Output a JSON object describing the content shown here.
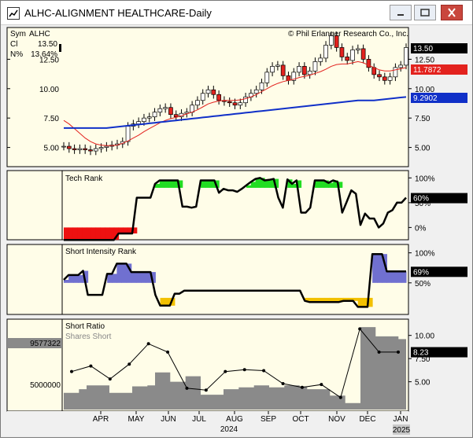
{
  "window": {
    "title": "ALHC-ALIGNMENT HEALTHCARE-Daily"
  },
  "price_info": {
    "sym_label": "Sym",
    "sym_value": "ALHC",
    "cl_label": "Cl",
    "cl_value": "13.50",
    "npct_label": "N%",
    "npct_value": "13.64%"
  },
  "copyright": "© Phil Erlanger Research Co., Inc.",
  "colors": {
    "panel_bg": "#fffde8",
    "ma_short": "#e3221e",
    "ma_long": "#1030c8",
    "tech_rank_fill_high": "#22dd22",
    "tech_rank_fill_low": "#ee1111",
    "short_intensity_fill": "#7070d0",
    "short_intensity_fill_low": "#f2c000",
    "shares_short_fill": "#8a8a8a"
  },
  "x_axis": {
    "months": [
      "APR",
      "MAY",
      "JUN",
      "JUL",
      "AUG",
      "SEP",
      "OCT",
      "NOV",
      "DEC",
      "JAN"
    ],
    "year_labels": [
      "2024",
      "2025"
    ]
  },
  "chart_data": [
    {
      "type": "candlestick",
      "panel": "price",
      "y_ticks": [
        "5.00",
        "7.50",
        "10.00",
        "12.50"
      ],
      "ylim": [
        3.5,
        15.0
      ],
      "price_label": "13.50",
      "ma_short_label": "11.7872",
      "ma_long_label": "9.2902",
      "close": [
        5.1,
        4.9,
        4.8,
        4.9,
        4.8,
        4.7,
        4.9,
        5.0,
        5.1,
        5.2,
        5.3,
        5.5,
        6.8,
        7.0,
        7.2,
        7.5,
        7.6,
        8.0,
        8.3,
        8.4,
        7.8,
        7.6,
        7.9,
        8.0,
        8.6,
        9.0,
        9.6,
        9.9,
        9.5,
        9.0,
        8.9,
        8.8,
        8.6,
        8.8,
        9.3,
        9.6,
        9.9,
        10.5,
        11.4,
        11.9,
        12.0,
        11.1,
        10.7,
        11.4,
        11.9,
        11.2,
        11.5,
        12.3,
        12.6,
        13.7,
        14.5,
        13.5,
        12.7,
        12.4,
        13.3,
        13.4,
        12.5,
        11.8,
        11.2,
        11.0,
        10.7,
        11.0,
        11.8,
        12.0,
        13.5
      ],
      "ma_short": [
        7.3,
        7.0,
        6.6,
        6.2,
        5.8,
        5.5,
        5.3,
        5.2,
        5.15,
        5.15,
        5.2,
        5.35,
        5.55,
        5.8,
        6.05,
        6.35,
        6.6,
        6.85,
        7.1,
        7.3,
        7.45,
        7.55,
        7.7,
        7.85,
        8.0,
        8.2,
        8.45,
        8.7,
        8.85,
        8.95,
        9.0,
        9.0,
        9.0,
        9.05,
        9.15,
        9.3,
        9.5,
        9.75,
        10.0,
        10.25,
        10.45,
        10.6,
        10.7,
        10.8,
        10.95,
        11.05,
        11.15,
        11.3,
        11.45,
        11.65,
        11.9,
        12.05,
        12.1,
        12.1,
        12.2,
        12.3,
        12.2,
        12.0,
        11.8,
        11.6,
        11.5,
        11.5,
        11.6,
        11.7,
        11.79
      ],
      "ma_long": [
        6.65,
        6.65,
        6.65,
        6.65,
        6.65,
        6.65,
        6.65,
        6.65,
        6.65,
        6.7,
        6.75,
        6.8,
        6.85,
        6.9,
        6.95,
        7.0,
        7.05,
        7.1,
        7.15,
        7.2,
        7.25,
        7.3,
        7.35,
        7.4,
        7.45,
        7.5,
        7.55,
        7.6,
        7.65,
        7.7,
        7.75,
        7.8,
        7.85,
        7.9,
        7.95,
        8.0,
        8.05,
        8.1,
        8.15,
        8.2,
        8.25,
        8.3,
        8.35,
        8.4,
        8.45,
        8.5,
        8.55,
        8.6,
        8.65,
        8.7,
        8.75,
        8.8,
        8.85,
        8.9,
        8.95,
        9.0,
        9.0,
        9.0,
        9.0,
        9.05,
        9.1,
        9.15,
        9.2,
        9.25,
        9.29
      ]
    },
    {
      "type": "area",
      "panel": "tech_rank",
      "title": "Tech Rank",
      "y_ticks": [
        "100%",
        "50%",
        "0%"
      ],
      "ylim": [
        -20,
        110
      ],
      "current_label": "60%",
      "values": [
        -25,
        -25,
        -25,
        -25,
        -25,
        -25,
        -25,
        -25,
        -25,
        -25,
        -25,
        -25,
        -12,
        -12,
        -12,
        -12,
        60,
        60,
        60,
        60,
        88,
        95,
        95,
        95,
        95,
        95,
        42,
        42,
        40,
        42,
        95,
        95,
        95,
        95,
        70,
        78,
        75,
        75,
        72,
        78,
        85,
        92,
        98,
        100,
        95,
        96,
        98,
        60,
        40,
        97,
        88,
        95,
        30,
        30,
        40,
        95,
        95,
        95,
        90,
        95,
        92,
        30,
        52,
        75,
        68,
        5,
        28,
        18,
        18,
        0,
        8,
        30,
        35,
        50,
        50,
        60
      ]
    },
    {
      "type": "area",
      "panel": "short_intensity_rank",
      "title": "Short Intensity Rank",
      "y_ticks": [
        "100%",
        "50%"
      ],
      "ylim": [
        0,
        110
      ],
      "current_label": "69%",
      "values": [
        55,
        63,
        63,
        63,
        70,
        30,
        30,
        30,
        30,
        65,
        65,
        82,
        82,
        82,
        68,
        68,
        68,
        68,
        68,
        30,
        12,
        12,
        12,
        32,
        32,
        37,
        37,
        37,
        37,
        37,
        37,
        37,
        37,
        37,
        37,
        37,
        37,
        37,
        37,
        37,
        37,
        37,
        37,
        37,
        37,
        37,
        37,
        37,
        37,
        37,
        20,
        18,
        18,
        18,
        18,
        18,
        18,
        18,
        20,
        20,
        20,
        10,
        10,
        10,
        98,
        98,
        98,
        69,
        69,
        69,
        69,
        69
      ]
    },
    {
      "type": "bar_line",
      "panel": "short_ratio",
      "title": "Short Ratio",
      "subtitle": "Shares Short",
      "y_ticks_right": [
        "10.00",
        "7.50",
        "5.00"
      ],
      "y_ticks_left": [
        "5000000"
      ],
      "ylim": [
        2.0,
        11.5
      ],
      "left_value_label": "9577322",
      "current_label": "8.23",
      "shares_short": [
        3.8,
        3.8,
        4.2,
        4.6,
        4.6,
        4.6,
        3.8,
        3.8,
        3.8,
        4.5,
        4.5,
        4.6,
        6.0,
        6.0,
        5.0,
        5.0,
        5.6,
        5.6,
        3.6,
        3.6,
        3.6,
        4.2,
        4.2,
        4.4,
        4.4,
        4.6,
        4.6,
        4.4,
        4.4,
        4.6,
        4.6,
        4.5,
        4.2,
        4.2,
        4.2,
        3.5,
        3.5,
        2.7,
        2.7,
        10.9,
        10.9,
        9.9,
        9.9,
        9.9,
        9.6,
        9.6
      ],
      "short_ratio": [
        6.1,
        6.7,
        5.3,
        6.9,
        9.1,
        8.2,
        4.3,
        4.1,
        6.1,
        6.3,
        6.2,
        4.8,
        4.4,
        4.7,
        3.3,
        10.7,
        8.2,
        8.2
      ]
    }
  ]
}
